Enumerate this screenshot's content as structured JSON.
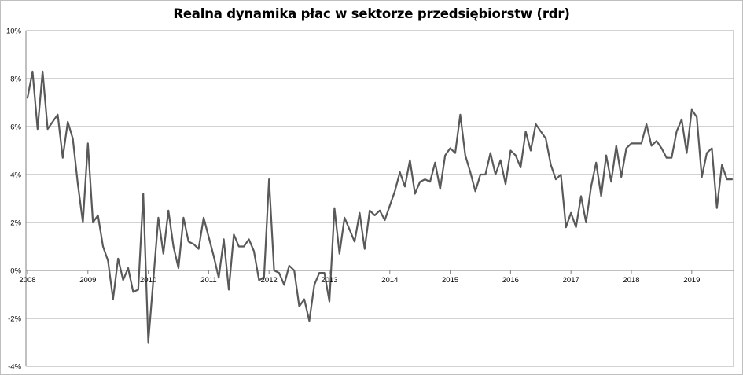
{
  "chart_data": {
    "type": "line",
    "title": "Realna dynamika płac w sektorze przedsiębiorstw (rdr)",
    "xlabel": "",
    "ylabel": "",
    "ylim": [
      -0.04,
      0.1
    ],
    "y_ticks": [
      {
        "value": 0.1,
        "label": "10%"
      },
      {
        "value": 0.08,
        "label": "8%"
      },
      {
        "value": 0.06,
        "label": "6%"
      },
      {
        "value": 0.04,
        "label": "4%"
      },
      {
        "value": 0.02,
        "label": "2%"
      },
      {
        "value": 0.0,
        "label": "0%"
      },
      {
        "value": -0.02,
        "label": "-2%"
      },
      {
        "value": -0.04,
        "label": "-4%"
      }
    ],
    "x_ticks": [
      "2008",
      "2009",
      "2010",
      "2011",
      "2012",
      "2013",
      "2014",
      "2015",
      "2016",
      "2017",
      "2018",
      "2019"
    ],
    "x_start": "2008-01",
    "grid": true,
    "legend": "none",
    "colors": {
      "line": "#595959",
      "grid": "#a6a6a6",
      "axis": "#808080"
    },
    "series": [
      {
        "values": [
          0.072,
          0.083,
          0.059,
          0.083,
          0.059,
          0.062,
          0.065,
          0.047,
          0.062,
          0.055,
          0.036,
          0.02,
          0.053,
          0.02,
          0.023,
          0.01,
          0.004,
          -0.012,
          0.005,
          -0.004,
          0.001,
          -0.009,
          -0.008,
          0.032,
          -0.03,
          -0.004,
          0.022,
          0.007,
          0.025,
          0.01,
          0.001,
          0.022,
          0.012,
          0.011,
          0.009,
          0.022,
          0.014,
          0.006,
          -0.003,
          0.013,
          -0.008,
          0.015,
          0.01,
          0.01,
          0.013,
          0.008,
          -0.004,
          -0.003,
          0.038,
          0.0,
          -0.001,
          -0.006,
          0.002,
          0.0,
          -0.015,
          -0.012,
          -0.021,
          -0.006,
          -0.001,
          -0.001,
          -0.013,
          0.026,
          0.007,
          0.022,
          0.017,
          0.012,
          0.024,
          0.009,
          0.025,
          0.023,
          0.025,
          0.021,
          0.027,
          0.033,
          0.041,
          0.035,
          0.046,
          0.032,
          0.037,
          0.038,
          0.037,
          0.045,
          0.034,
          0.048,
          0.051,
          0.049,
          0.065,
          0.048,
          0.041,
          0.033,
          0.04,
          0.04,
          0.049,
          0.04,
          0.046,
          0.036,
          0.05,
          0.048,
          0.043,
          0.058,
          0.05,
          0.061,
          0.058,
          0.055,
          0.044,
          0.038,
          0.04,
          0.018,
          0.024,
          0.018,
          0.031,
          0.02,
          0.035,
          0.045,
          0.031,
          0.048,
          0.037,
          0.052,
          0.039,
          0.051,
          0.053,
          0.053,
          0.053,
          0.061,
          0.052,
          0.054,
          0.051,
          0.047,
          0.047,
          0.058,
          0.063,
          0.049,
          0.067,
          0.064,
          0.039,
          0.049,
          0.051,
          0.026,
          0.044,
          0.038,
          0.038
        ]
      }
    ]
  }
}
